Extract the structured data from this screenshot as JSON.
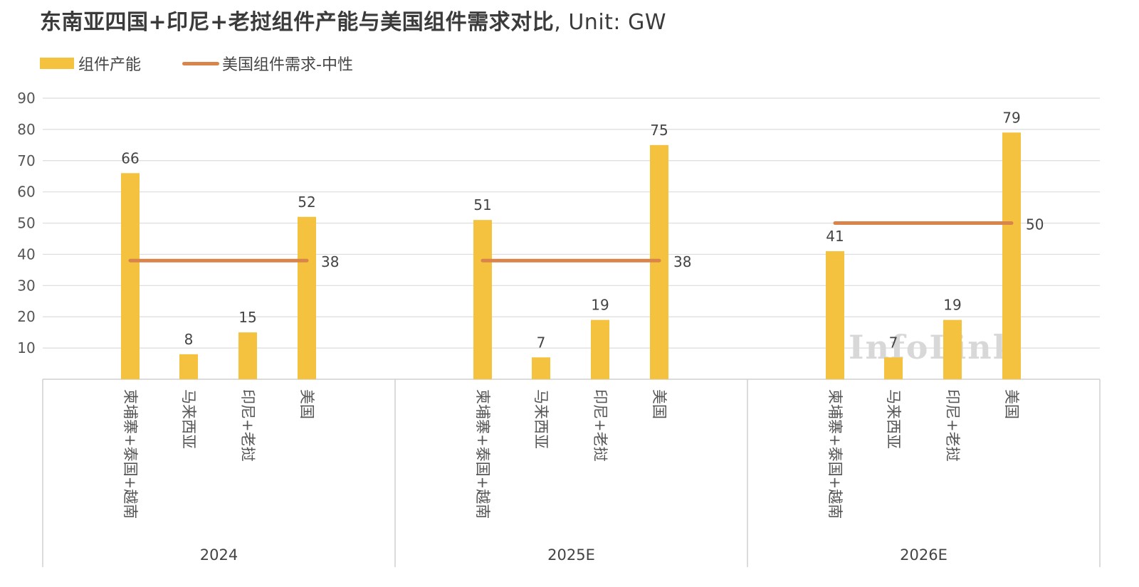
{
  "title": "东南亚四国+印尼+老挝组件产能与美国组件需求对比",
  "title_unit": ", Unit: GW",
  "legend": {
    "capacity": "组件产能",
    "demand": "美国组件需求-中性"
  },
  "watermark": "InfoLink",
  "colors": {
    "bar": "#f4c23e",
    "line": "#d9844a",
    "grid": "#dcdcdc"
  },
  "chart_data": {
    "type": "bar",
    "title": "东南亚四国+印尼+老挝组件产能与美国组件需求对比, Unit: GW",
    "ylim": [
      0,
      90
    ],
    "yticks": [
      10,
      20,
      30,
      40,
      50,
      60,
      70,
      80,
      90
    ],
    "grid": true,
    "legend_position": "top-left",
    "groups": [
      {
        "name": "2024",
        "categories": [
          "柬埔寨+泰国+越南",
          "马来西亚",
          "印尼+老挝",
          "美国"
        ],
        "values": [
          66,
          8,
          15,
          52
        ],
        "value_labels": [
          "66",
          "8",
          "15",
          "52"
        ],
        "demand": 38,
        "demand_label": "38"
      },
      {
        "name": "2025E",
        "categories": [
          "柬埔寨+泰国+越南",
          "马来西亚",
          "印尼+老挝",
          "美国"
        ],
        "values": [
          51,
          7,
          19,
          75
        ],
        "value_labels": [
          "51",
          "7",
          "19",
          "75"
        ],
        "demand": 38,
        "demand_label": "38"
      },
      {
        "name": "2026E",
        "categories": [
          "柬埔寨+泰国+越南",
          "马来西亚",
          "印尼+老挝",
          "美国"
        ],
        "values": [
          41,
          7,
          19,
          79
        ],
        "value_labels": [
          "41",
          "7",
          "19",
          "79"
        ],
        "demand": 50,
        "demand_label": "50"
      }
    ]
  }
}
